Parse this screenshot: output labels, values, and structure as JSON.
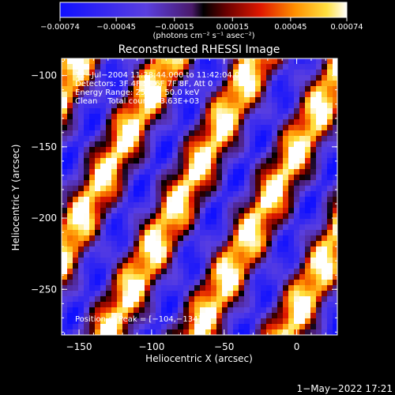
{
  "chart_data": {
    "type": "heatmap",
    "title": "Reconstructed RHESSI Image",
    "xlabel": "Heliocentric X (arcsec)",
    "ylabel": "Heliocentric Y (arcsec)",
    "xlim": [
      -162,
      28
    ],
    "ylim": [
      -282,
      -88
    ],
    "x_ticks": [
      -150,
      -100,
      -50,
      0
    ],
    "x_tick_labels": [
      "−150",
      "−100",
      "−50",
      "0"
    ],
    "y_ticks": [
      -100,
      -150,
      -200,
      -250
    ],
    "y_tick_labels": [
      "−100",
      "−150",
      "−200",
      "−250"
    ],
    "colorbar": {
      "range": [
        -0.00074,
        0.00074
      ],
      "ticks": [
        -0.00074,
        -0.00045,
        -0.00015,
        0.00015,
        0.00045,
        0.00074
      ],
      "tick_labels": [
        "−0.00074",
        "−0.00045",
        "−0.00015",
        "0.00015",
        "0.00045",
        "0.00074"
      ],
      "units": "(photons cm⁻² s⁻¹ asec⁻²)"
    },
    "annotations": [
      "12−Jul−2004 11:38:44.000 to 11:42:04.000",
      "Detectors: 3F 4F 5F 6F 7F 8F, Att 0",
      "Energy Range: 25.0 − 50.0 keV",
      "Clean    Total counts: 3.63E+03",
      "Position of Peak = [−104,−134]"
    ],
    "peak_position": [
      -104,
      -134
    ]
  },
  "footer": {
    "timestamp": "1−May−2022 17:21"
  }
}
